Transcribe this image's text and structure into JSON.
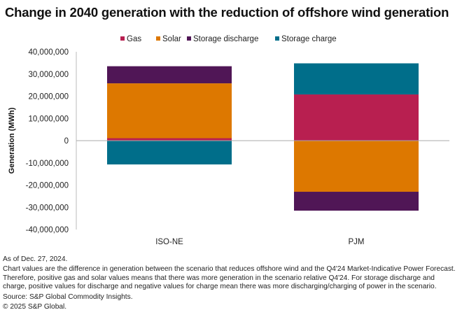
{
  "chart_data": {
    "type": "bar",
    "stacked": true,
    "title": "Change in 2040 generation with the reduction of offshore wind generation",
    "xlabel": "",
    "ylabel": "Generation (MWh)",
    "ylim": [
      -40000000,
      40000000
    ],
    "yticks": [
      40000000,
      30000000,
      20000000,
      10000000,
      0,
      -10000000,
      -20000000,
      -30000000,
      -40000000
    ],
    "ytick_labels": [
      "40,000,000",
      "30,000,000",
      "20,000,000",
      "10,000,000",
      "0",
      "-10,000,000",
      "-20,000,000",
      "-30,000,000",
      "-40,000,000"
    ],
    "grid": false,
    "legend_position": "top-center",
    "categories": [
      "ISO-NE",
      "PJM"
    ],
    "series": [
      {
        "name": "Gas",
        "color": "#b81f50",
        "values": [
          1100000,
          20800000
        ]
      },
      {
        "name": "Solar",
        "color": "#dd7800",
        "values": [
          24700000,
          -23000000
        ]
      },
      {
        "name": "Storage discharge",
        "color": "#501656",
        "values": [
          7700000,
          -8500000
        ]
      },
      {
        "name": "Storage charge",
        "color": "#006e8a",
        "values": [
          -10700000,
          14000000
        ]
      }
    ]
  },
  "notes": {
    "as_of": "As of Dec. 27, 2024.",
    "description": "Chart values are the difference in generation between the scenario that reduces offshore wind and the Q4'24 Market-Indicative Power Forecast. Therefore, positive gas and solar values means that there was more generation in the scenario relative Q4'24. For storage discharge and charge, positive values for discharge and negative values for charge mean there was more discharging/charging of power in the scenario.",
    "source": "Source: S&P Global Commodity Insights.",
    "copyright": "© 2025 S&P Global."
  }
}
